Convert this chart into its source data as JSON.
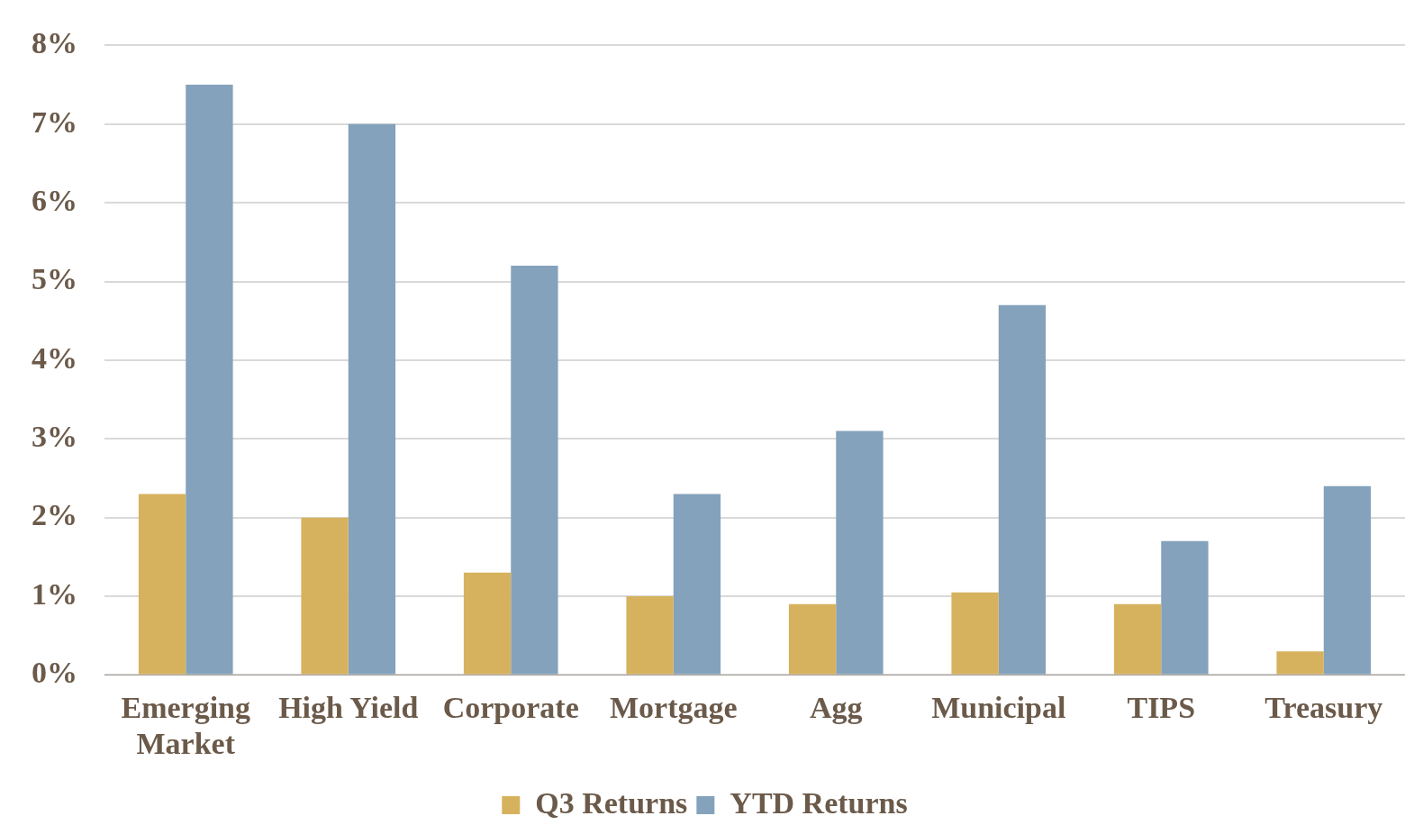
{
  "chart_data": {
    "type": "bar",
    "categories": [
      "Emerging Market",
      "High Yield",
      "Corporate",
      "Mortgage",
      "Agg",
      "Municipal",
      "TIPS",
      "Treasury"
    ],
    "series": [
      {
        "name": "Q3 Returns",
        "color": "#d6b25e",
        "values": [
          2.3,
          2.0,
          1.3,
          1.0,
          0.9,
          1.05,
          0.9,
          0.3
        ]
      },
      {
        "name": "YTD Returns",
        "color": "#84a2bb",
        "values": [
          7.5,
          7.0,
          5.2,
          2.3,
          3.1,
          4.7,
          1.7,
          2.4
        ]
      }
    ],
    "ylim": [
      0,
      8
    ],
    "yticks": [
      {
        "value": 0,
        "label": "0%"
      },
      {
        "value": 1,
        "label": "1%"
      },
      {
        "value": 2,
        "label": "2%"
      },
      {
        "value": 3,
        "label": "3%"
      },
      {
        "value": 4,
        "label": "4%"
      },
      {
        "value": 5,
        "label": "5%"
      },
      {
        "value": 6,
        "label": "6%"
      },
      {
        "value": 7,
        "label": "7%"
      },
      {
        "value": 8,
        "label": "8%"
      }
    ],
    "grid": "y",
    "legend": "bottom"
  }
}
